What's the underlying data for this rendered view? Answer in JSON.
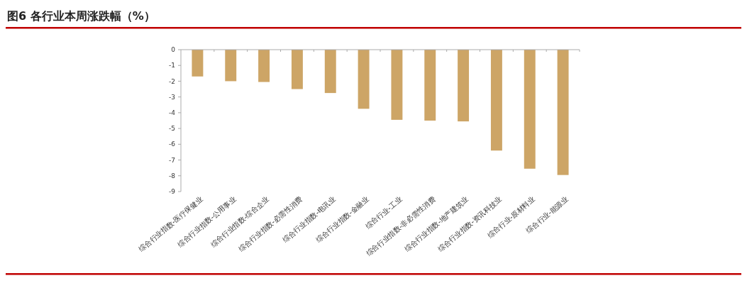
{
  "chart_data": {
    "type": "bar",
    "title": "图6 各行业本周涨跌幅（%）",
    "categories": [
      "综合行业指数-医疗保健业",
      "综合行业指数-公用事业",
      "综合行业指数-综合企业",
      "综合行业指数-必需性消费",
      "综合行业指数-电讯业",
      "综合行业指数-金融业",
      "综合行业-工业",
      "综合行业指数-非必需性消费",
      "综合行业指数-地产建筑业",
      "综合行业指数-资讯科技业",
      "综合行业-原材料业",
      "综合行业-能源业"
    ],
    "values": [
      -1.7,
      -2.0,
      -2.05,
      -2.5,
      -2.75,
      -3.75,
      -4.45,
      -4.5,
      -4.55,
      -6.4,
      -7.55,
      -7.95
    ],
    "color": "#cda566",
    "ylim": [
      -9,
      0
    ],
    "yticks": [
      0,
      -1,
      -2,
      -3,
      -4,
      -5,
      -6,
      -7,
      -8,
      -9
    ],
    "grid": false
  }
}
